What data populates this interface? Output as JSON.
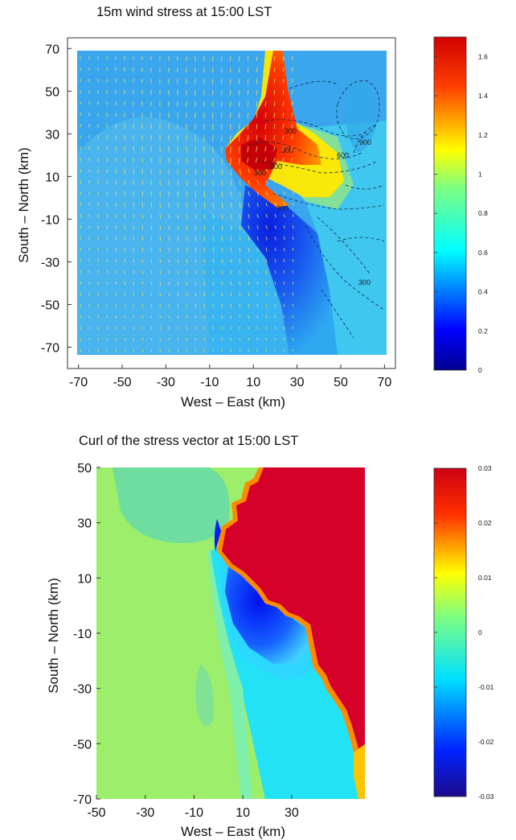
{
  "chart_data": [
    {
      "type": "heatmap",
      "title": "15m wind stress at 15:00 LST",
      "xlabel": "West – East (km)",
      "ylabel": "South – North (km)",
      "xlim": [
        -75,
        75
      ],
      "ylim": [
        -80,
        75
      ],
      "x_ticks": [
        -70,
        -50,
        -30,
        -10,
        10,
        30,
        50,
        70
      ],
      "y_ticks": [
        70,
        50,
        30,
        10,
        -10,
        -30,
        -50,
        -70
      ],
      "colorbar": {
        "range": [
          0,
          1.7
        ],
        "ticks": [
          0,
          0.2,
          0.4,
          0.6,
          0.8,
          1,
          1.2,
          1.4,
          1.6
        ]
      },
      "overlays": [
        "wind stress vectors (yellow arrows)",
        "terrain height contours (dashed)"
      ],
      "contour_labels": [
        "300",
        "300",
        "300",
        "300",
        "300",
        "600",
        "900",
        "300"
      ],
      "colormap": "jet"
    },
    {
      "type": "heatmap",
      "title": "Curl of the stress vector at 15:00 LST",
      "xlabel": "West – East (km)",
      "ylabel": "South – North (km)",
      "xlim": [
        -50,
        50
      ],
      "ylim": [
        -70,
        50
      ],
      "x_ticks": [
        -50,
        -30,
        -10,
        10,
        30
      ],
      "y_ticks": [
        50,
        30,
        10,
        -10,
        -30,
        -50,
        -70
      ],
      "colorbar": {
        "range": [
          -0.03,
          0.03
        ],
        "ticks": [
          0.03,
          0.02,
          0.01,
          0,
          -0.01,
          -0.02,
          -0.03
        ]
      },
      "colormap": "jet"
    }
  ]
}
